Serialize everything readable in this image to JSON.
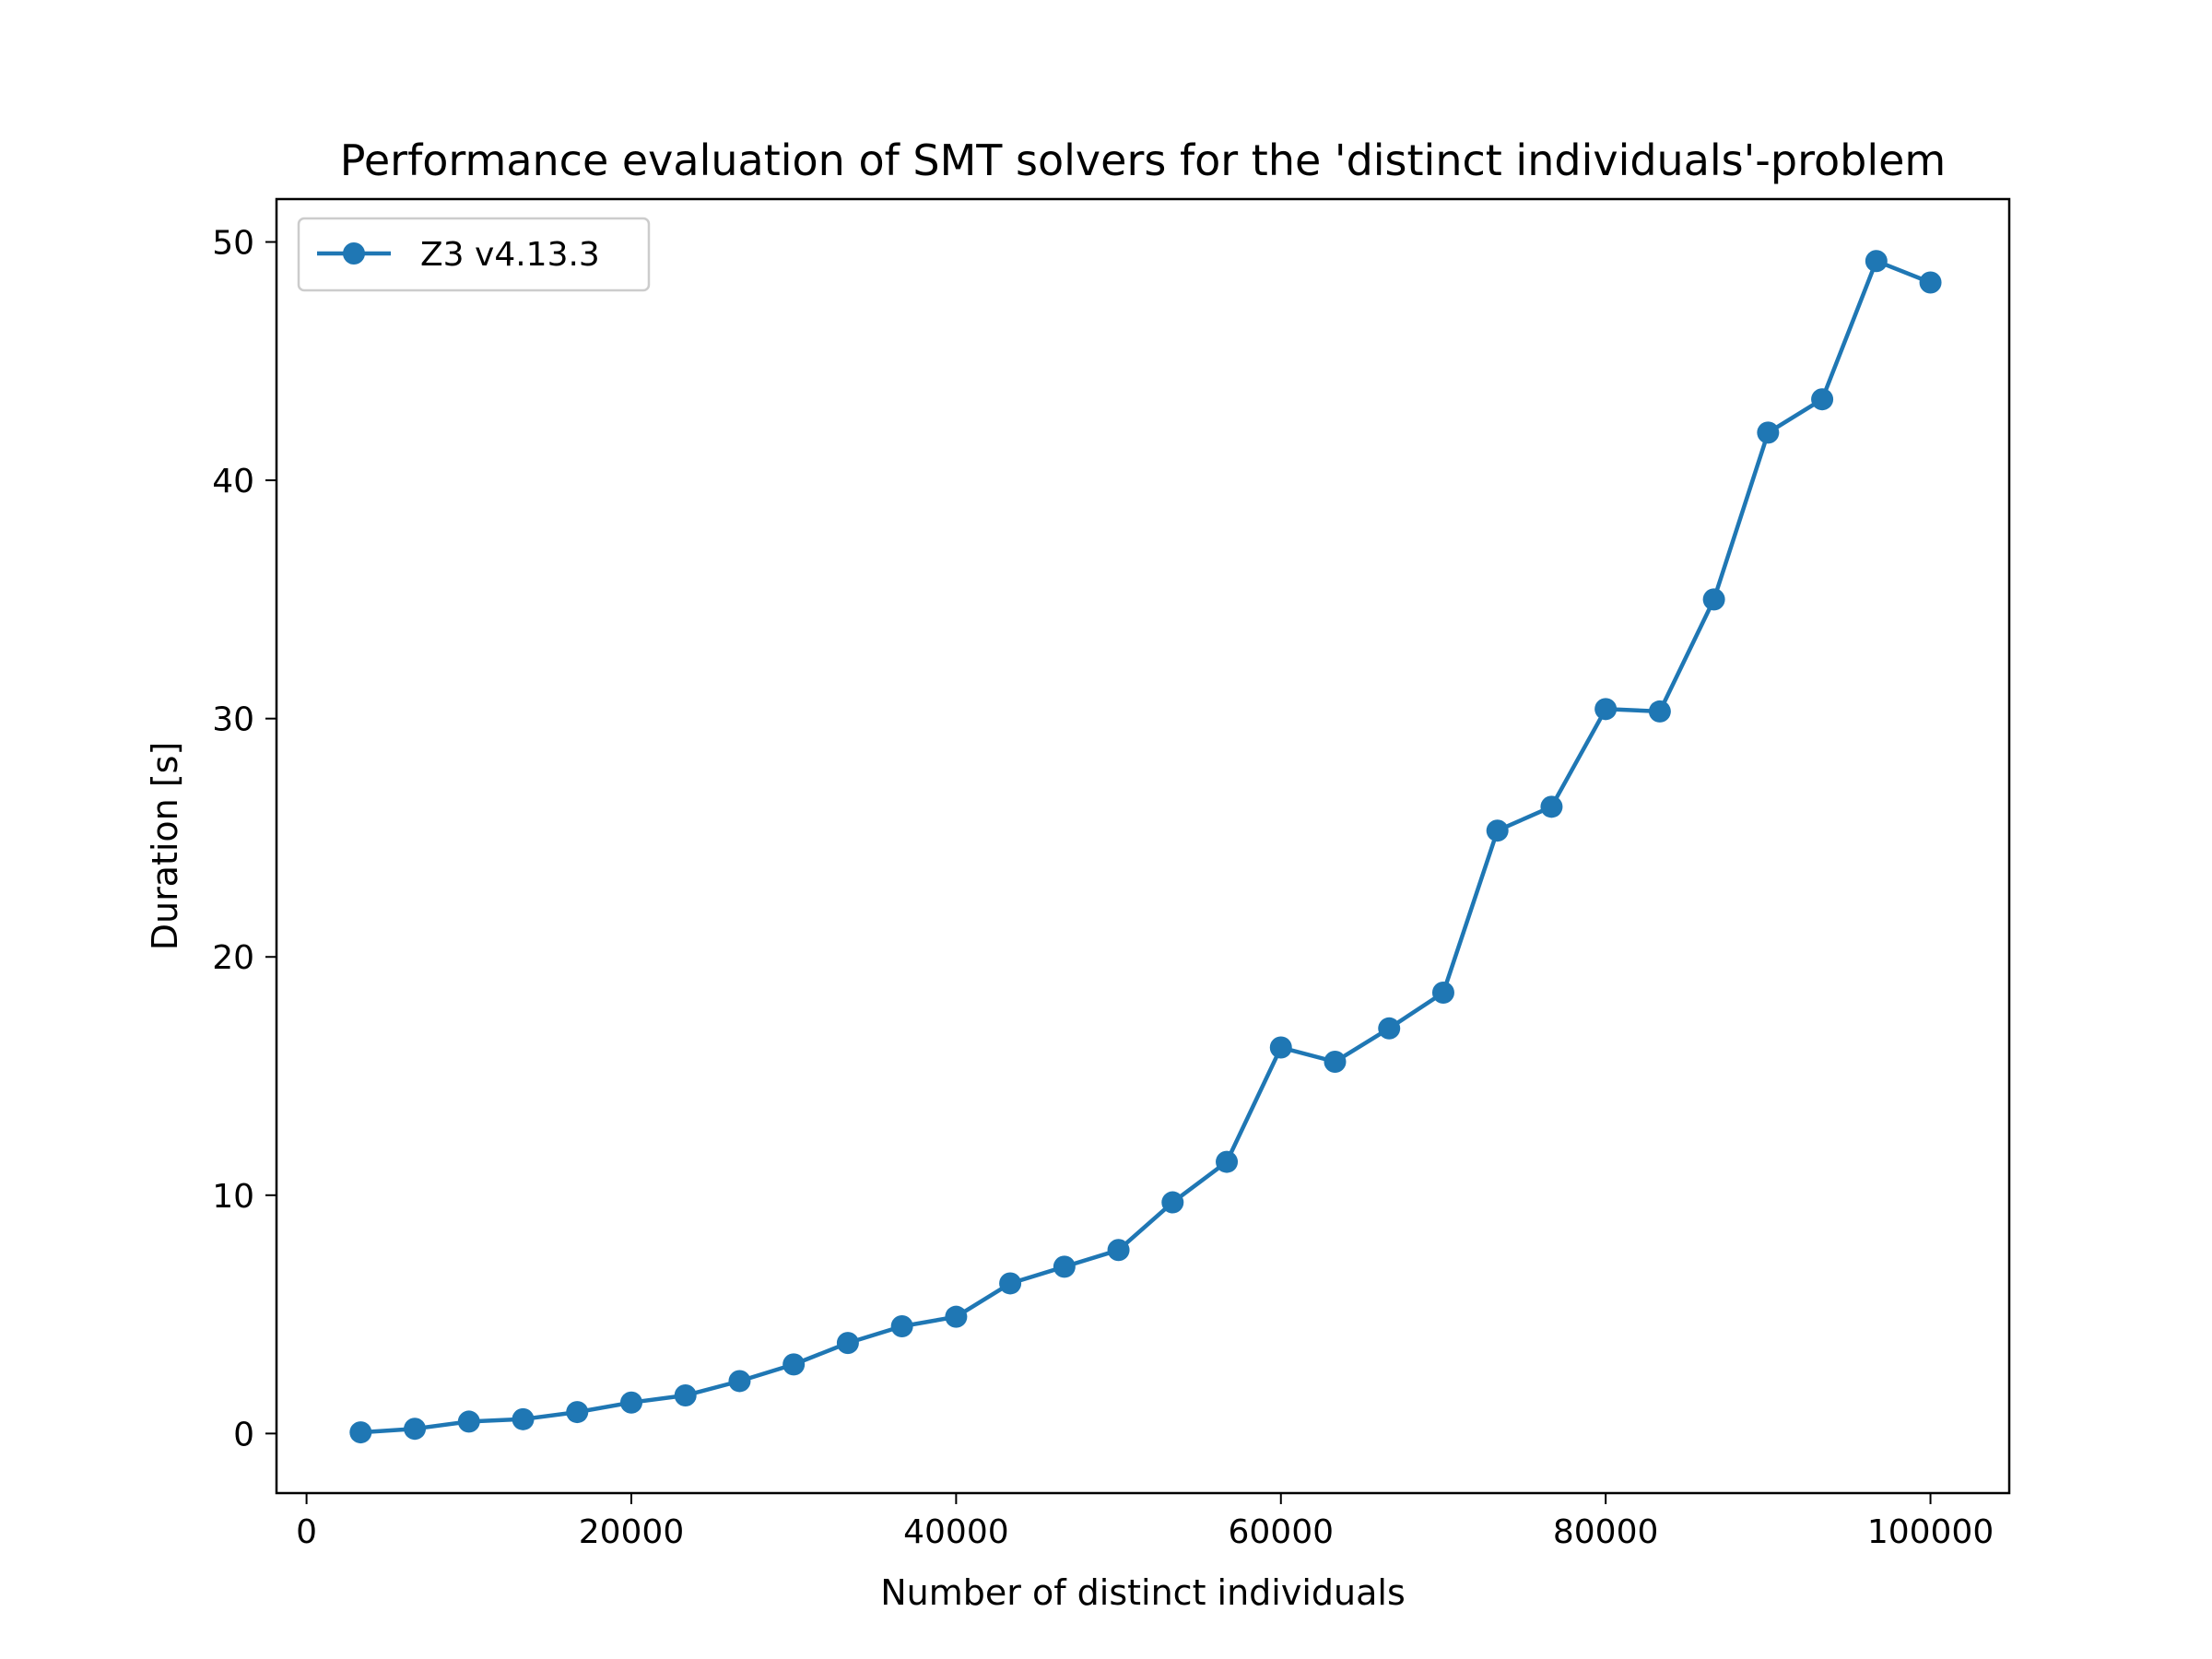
{
  "chart_data": {
    "type": "line",
    "title": "Performance evaluation of SMT solvers for the 'distinct individuals'-problem",
    "xlabel": "Number of distinct individuals",
    "ylabel": "Duration [s]",
    "xlim": [
      -1850,
      104850
    ],
    "ylim": [
      -2.5,
      51.8
    ],
    "xticks": [
      0,
      20000,
      40000,
      60000,
      80000,
      100000
    ],
    "yticks": [
      0,
      10,
      20,
      30,
      40,
      50
    ],
    "grid": false,
    "legend": {
      "position": "top-left",
      "entries": [
        "Z3 v4.13.3"
      ]
    },
    "series": [
      {
        "name": "Z3 v4.13.3",
        "color": "#1f77b4",
        "marker": "circle",
        "x": [
          3333,
          6667,
          10000,
          13333,
          16667,
          20000,
          23333,
          26667,
          30000,
          33333,
          36667,
          40000,
          43333,
          46667,
          50000,
          53333,
          56667,
          60000,
          63333,
          66667,
          70000,
          73333,
          76667,
          80000,
          83333,
          86667,
          90000,
          93333,
          96667,
          100000
        ],
        "y": [
          0.05,
          0.2,
          0.5,
          0.6,
          0.9,
          1.3,
          1.6,
          2.2,
          2.9,
          3.8,
          4.5,
          4.9,
          6.3,
          7.0,
          7.7,
          9.7,
          11.4,
          16.2,
          15.6,
          17.0,
          18.5,
          25.3,
          26.3,
          30.4,
          30.3,
          35.0,
          42.0,
          43.4,
          49.2,
          48.3
        ]
      }
    ]
  }
}
